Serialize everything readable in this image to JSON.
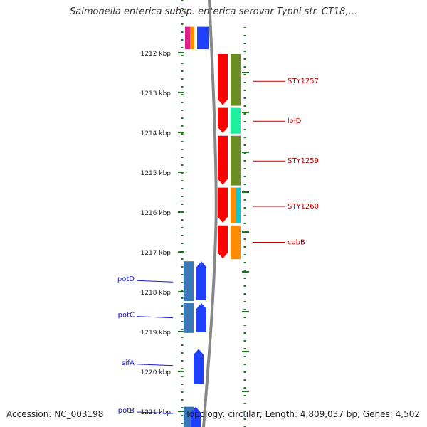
{
  "title": "Salmonella enterica subsp. enterica serovar Typhi str. CT18,...",
  "footer": {
    "accession": "Accession: NC_003198",
    "topology": "Topology: circular; Length: 4,809,037 bp; Genes: 4,502"
  },
  "colors": {
    "background": "#ffffff",
    "tick": "#1f7a1f",
    "label_left": "#1a1ad0",
    "label_right": "#c00000",
    "backbone": "#888888"
  },
  "axis": {
    "unit": "kbp",
    "ticks": [
      {
        "label": "1212 kbp",
        "value": 1212
      },
      {
        "label": "1213 kbp",
        "value": 1213
      },
      {
        "label": "1214 kbp",
        "value": 1214
      },
      {
        "label": "1215 kbp",
        "value": 1215
      },
      {
        "label": "1216 kbp",
        "value": 1216
      },
      {
        "label": "1217 kbp",
        "value": 1217
      },
      {
        "label": "1218 kbp",
        "value": 1218
      },
      {
        "label": "1219 kbp",
        "value": 1219
      },
      {
        "label": "1220 kbp",
        "value": 1220
      },
      {
        "label": "1221 kbp",
        "value": 1221
      }
    ]
  },
  "labels_left": [
    {
      "text": "potD",
      "value": 1217.7
    },
    {
      "text": "potC",
      "value": 1218.6
    },
    {
      "text": "sifA",
      "value": 1219.8
    },
    {
      "text": "potB",
      "value": 1221.0
    }
  ],
  "labels_right": [
    {
      "text": "STY1257",
      "value": 1212.7
    },
    {
      "text": "lolD",
      "value": 1213.7
    },
    {
      "text": "STY1259",
      "value": 1214.7
    },
    {
      "text": "STY1260",
      "value": 1215.84
    },
    {
      "text": "cobB",
      "value": 1216.74
    }
  ],
  "features": {
    "top_strip": [
      {
        "start": 1211.35,
        "end": 1212.0,
        "color": "#e0208a"
      },
      {
        "start": 1211.35,
        "end": 1212.0,
        "color": "#ff8c00"
      }
    ],
    "minus_strand_genes": [
      {
        "name": "potD",
        "start": 1217.2,
        "end": 1218.25,
        "color": "#2040ff"
      },
      {
        "name": "potC",
        "start": 1218.25,
        "end": 1219.05,
        "color": "#2040ff"
      },
      {
        "name": "sifA",
        "start": 1219.4,
        "end": 1220.35,
        "color": "#2040ff"
      },
      {
        "name": "potB",
        "start": 1220.85,
        "end": 1221.5,
        "color": "#2040ff"
      }
    ],
    "minus_strand_cds": [
      {
        "start": 1217.2,
        "end": 1218.25,
        "color": "#3a78b8"
      },
      {
        "start": 1218.25,
        "end": 1219.05,
        "color": "#3a78b8"
      },
      {
        "start": 1220.85,
        "end": 1221.5,
        "color": "#3a78b8"
      }
    ],
    "plus_strand_genes": [
      {
        "name": "STY1257",
        "start": 1212.0,
        "end": 1213.35,
        "color": "#ff0000"
      },
      {
        "name": "lolD",
        "start": 1213.35,
        "end": 1214.05,
        "color": "#ff0000"
      },
      {
        "name": "STY1259",
        "start": 1214.05,
        "end": 1215.35,
        "color": "#ff0000"
      },
      {
        "name": "STY1260",
        "start": 1215.35,
        "end": 1216.3,
        "color": "#ff0000"
      },
      {
        "name": "cobB",
        "start": 1216.3,
        "end": 1217.2,
        "color": "#ff0000"
      }
    ],
    "plus_strand_cds": [
      {
        "start": 1212.0,
        "end": 1213.35,
        "color": "#6b8e23"
      },
      {
        "start": 1213.35,
        "end": 1214.05,
        "color": "#1ef2a0"
      },
      {
        "start": 1214.05,
        "end": 1215.35,
        "color": "#6b8e23"
      },
      {
        "start": 1215.35,
        "end": 1216.3,
        "color": "#ff8c00"
      },
      {
        "start": 1215.35,
        "end": 1216.3,
        "color": "#10c8d0"
      },
      {
        "start": 1216.3,
        "end": 1217.2,
        "color": "#ff8c00"
      }
    ]
  }
}
